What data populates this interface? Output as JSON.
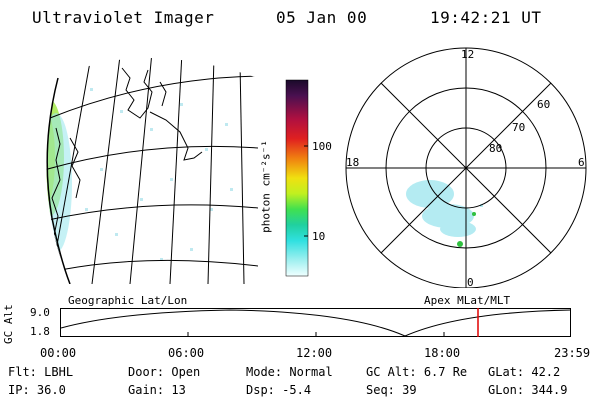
{
  "header": {
    "title": "Ultraviolet Imager",
    "date": "05 Jan 00",
    "time": "19:42:21 UT"
  },
  "colorbar": {
    "label": "photon cm⁻²s⁻¹",
    "ticks": [
      "100",
      "10"
    ]
  },
  "polar_plot": {
    "mlt_labels": {
      "top": "12",
      "left": "18",
      "right": "6",
      "bottom": "0"
    },
    "lat_labels": [
      "60",
      "70",
      "80"
    ]
  },
  "panel_labels": {
    "left": "Geographic Lat/Lon",
    "right": "Apex MLat/MLT"
  },
  "altitude_plot": {
    "ylabel": "GC Alt",
    "y_ticks": [
      "9.0",
      "1.8"
    ],
    "x_ticks": [
      "00:00",
      "06:00",
      "12:00",
      "18:00",
      "23:59"
    ],
    "marker_color": "#e00000"
  },
  "info": {
    "row1": [
      {
        "label": "Flt:",
        "value": "LBHL"
      },
      {
        "label": "Door:",
        "value": "Open"
      },
      {
        "label": "Mode:",
        "value": "Normal"
      },
      {
        "label": "GC Alt:",
        "value": "6.7 Re"
      },
      {
        "label": "GLat:",
        "value": "42.2"
      }
    ],
    "row2": [
      {
        "label": "IP:",
        "value": "36.0"
      },
      {
        "label": "Gain:",
        "value": "13"
      },
      {
        "label": "Dsp:",
        "value": "-5.4"
      },
      {
        "label": "Seq:",
        "value": "39"
      },
      {
        "label": "GLon:",
        "value": "344.9"
      }
    ]
  }
}
